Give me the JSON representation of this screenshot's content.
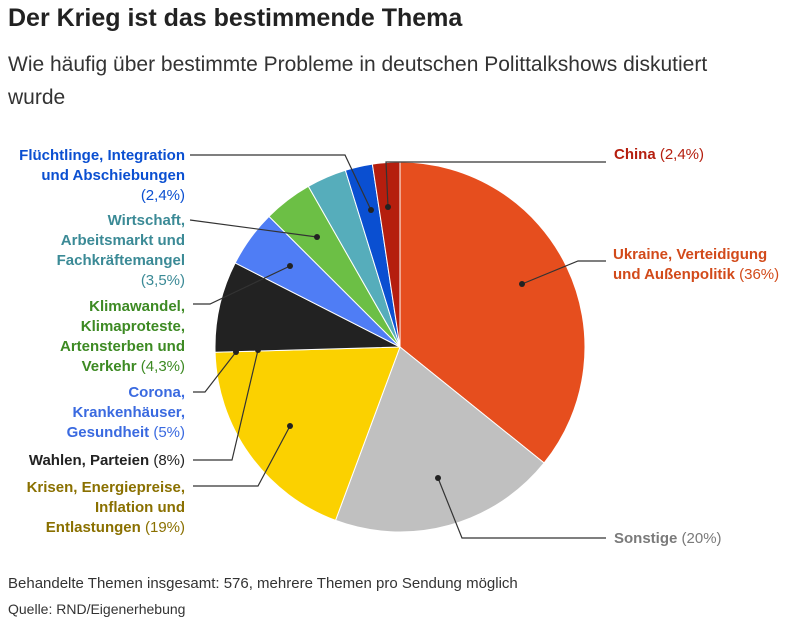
{
  "title": "Der Krieg ist das bestimmende Thema",
  "subtitle": "Wie häufig über bestimmte Probleme in deutschen Polittalkshows diskutiert wurde",
  "footer": {
    "note": "Behandelte Themen insgesamt: 576, mehrere Themen pro Sendung möglich",
    "source": "Quelle: RND/Eigenerhebung"
  },
  "chart_data": {
    "type": "pie",
    "title": "Der Krieg ist das bestimmende Thema",
    "subtitle": "Wie häufig über bestimmte Probleme in deutschen Polittalkshows diskutiert wurde",
    "slices": [
      {
        "id": "ukraine",
        "label_lines": [
          "Ukraine, Verteidigung",
          "und Außenpolitik"
        ],
        "value_label": "(36%)",
        "value": 36,
        "color": "#e64e1e",
        "text_color": "#d24a1a"
      },
      {
        "id": "sonstige",
        "label_lines": [
          "Sonstige"
        ],
        "value_label": "(20%)",
        "value": 20,
        "color": "#c0c0c0",
        "text_color": "#7a7a7a"
      },
      {
        "id": "krisen",
        "label_lines": [
          "Krisen, Energiepreise,",
          "Inflation und",
          "Entlastungen"
        ],
        "value_label": "(19%)",
        "value": 19,
        "color": "#fbd100",
        "text_color": "#8a7000"
      },
      {
        "id": "wahlen",
        "label_lines": [
          "Wahlen, Parteien"
        ],
        "value_label": "(8%)",
        "value": 8,
        "color": "#222222",
        "text_color": "#222222"
      },
      {
        "id": "corona",
        "label_lines": [
          "Corona,",
          "Krankenhäuser,",
          "Gesundheit"
        ],
        "value_label": "(5%)",
        "value": 5,
        "color": "#4f7df5",
        "text_color": "#3a6ae0"
      },
      {
        "id": "klima",
        "label_lines": [
          "Klimawandel,",
          "Klimaproteste,",
          "Artensterben und",
          "Verkehr"
        ],
        "value_label": "(4,3%)",
        "value": 4.3,
        "color": "#6cbf45",
        "text_color": "#3d8a23"
      },
      {
        "id": "wirtschaft",
        "label_lines": [
          "Wirtschaft,",
          "Arbeitsmarkt und",
          "Fachkräftemangel"
        ],
        "value_label": "(3,5%)",
        "value": 3.5,
        "color": "#56adbb",
        "text_color": "#3b8a96"
      },
      {
        "id": "fluechtlinge",
        "label_lines": [
          "Flüchtlinge, Integration",
          "und Abschiebungen"
        ],
        "value_label": "(2,4%)",
        "value": 2.4,
        "color": "#0a4fd1",
        "text_color": "#0a4fd1"
      },
      {
        "id": "china",
        "label_lines": [
          "China"
        ],
        "value_label": "(2,4%)",
        "value": 2.4,
        "color": "#b51e0e",
        "text_color": "#b51e0e"
      }
    ]
  }
}
